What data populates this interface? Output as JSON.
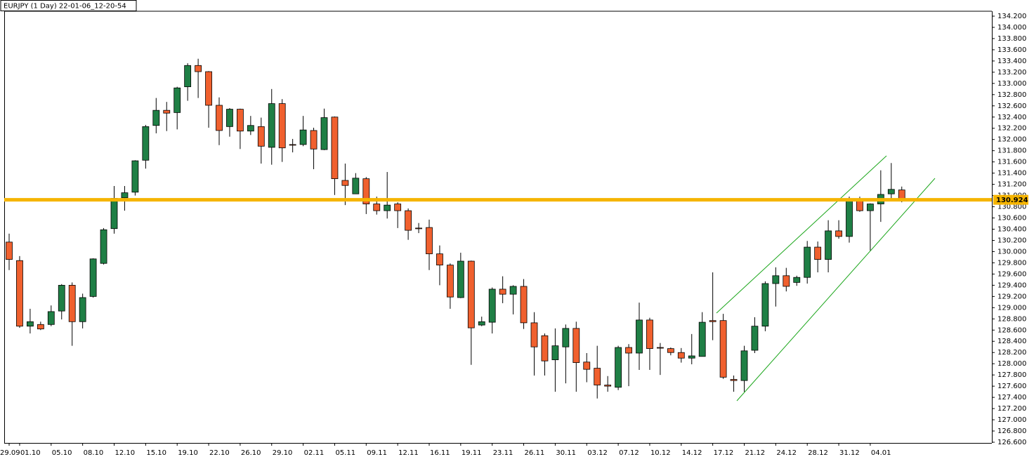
{
  "chart_data": {
    "type": "candlestick",
    "title": "EURJPY (1 Day) 22-01-06_12-20-54",
    "categories": [
      "29.09",
      "01.10",
      null,
      null,
      "05.10",
      null,
      null,
      "08.10",
      null,
      null,
      "12.10",
      null,
      null,
      "15.10",
      null,
      null,
      "19.10",
      null,
      null,
      "22.10",
      null,
      null,
      "26.10",
      null,
      null,
      "29.10",
      null,
      null,
      "02.11",
      null,
      null,
      "05.11",
      null,
      null,
      "09.11",
      null,
      null,
      "12.11",
      null,
      null,
      "16.11",
      null,
      null,
      "19.11",
      null,
      null,
      "23.11",
      null,
      null,
      "26.11",
      null,
      null,
      "30.11",
      null,
      null,
      "03.12",
      null,
      null,
      "07.12",
      null,
      null,
      "10.12",
      null,
      null,
      "14.12",
      null,
      null,
      "17.12",
      null,
      null,
      "21.12",
      null,
      null,
      "24.12",
      null,
      null,
      "28.12",
      null,
      null,
      "31.12",
      null,
      null,
      "04.01",
      null,
      null,
      null
    ],
    "open": [
      130.17,
      129.84,
      128.67,
      128.7,
      128.7,
      128.94,
      129.4,
      128.75,
      129.2,
      129.79,
      130.41,
      130.96,
      131.06,
      131.63,
      132.25,
      132.52,
      132.48,
      132.94,
      133.32,
      133.21,
      132.61,
      132.23,
      132.54,
      132.15,
      132.23,
      131.86,
      132.64,
      131.91,
      131.91,
      132.16,
      131.82,
      132.4,
      131.27,
      131.03,
      131.3,
      130.85,
      130.73,
      130.85,
      130.73,
      130.42,
      130.43,
      129.96,
      129.76,
      129.18,
      129.83,
      128.69,
      128.74,
      129.33,
      129.24,
      129.38,
      128.73,
      128.5,
      128.07,
      128.3,
      128.63,
      128.03,
      127.92,
      127.62,
      127.58,
      128.29,
      128.19,
      128.78,
      128.29,
      128.27,
      128.2,
      128.1,
      128.13,
      128.77,
      128.77,
      127.72,
      127.7,
      128.24,
      128.67,
      129.43,
      129.57,
      129.45,
      129.54,
      130.08,
      129.86,
      130.37,
      130.27,
      130.93,
      130.73,
      130.85,
      131.03,
      131.1
    ],
    "high": [
      130.32,
      129.92,
      128.98,
      128.75,
      129.04,
      129.42,
      129.45,
      129.25,
      129.88,
      130.42,
      131.17,
      131.17,
      131.63,
      132.26,
      132.74,
      132.67,
      132.94,
      133.36,
      133.44,
      133.22,
      132.75,
      132.56,
      132.55,
      132.42,
      132.39,
      132.9,
      132.72,
      132.01,
      132.42,
      132.21,
      132.55,
      132.41,
      131.57,
      131.4,
      131.33,
      130.98,
      131.42,
      130.88,
      130.77,
      130.51,
      130.57,
      130.11,
      129.79,
      129.98,
      129.84,
      128.84,
      129.36,
      129.56,
      129.4,
      129.51,
      128.92,
      128.54,
      128.63,
      128.7,
      128.75,
      128.19,
      128.32,
      127.78,
      128.32,
      128.35,
      129.09,
      128.82,
      128.37,
      128.29,
      128.28,
      128.53,
      128.92,
      129.63,
      128.89,
      127.79,
      128.32,
      128.83,
      129.47,
      129.72,
      129.71,
      129.57,
      130.19,
      130.18,
      130.56,
      130.56,
      130.98,
      130.98,
      130.86,
      131.45,
      131.58,
      131.16
    ],
    "low": [
      129.67,
      128.64,
      128.54,
      128.6,
      128.67,
      128.79,
      128.32,
      128.63,
      129.18,
      129.77,
      130.32,
      130.73,
      131.0,
      131.48,
      132.11,
      132.15,
      132.18,
      132.69,
      132.74,
      132.21,
      131.9,
      132.05,
      131.83,
      132.08,
      131.57,
      131.55,
      131.6,
      131.77,
      131.88,
      131.47,
      131.81,
      131.01,
      130.83,
      131.03,
      130.67,
      130.66,
      130.59,
      130.42,
      130.21,
      130.33,
      129.67,
      129.4,
      128.98,
      129.17,
      127.98,
      128.67,
      128.54,
      129.08,
      128.88,
      128.62,
      127.79,
      127.79,
      127.5,
      127.65,
      127.5,
      127.67,
      127.38,
      127.5,
      127.53,
      127.6,
      127.89,
      127.89,
      127.8,
      128.15,
      128.02,
      127.99,
      128.13,
      128.42,
      127.73,
      127.5,
      127.5,
      128.19,
      128.58,
      129.02,
      129.29,
      129.39,
      129.43,
      129.63,
      129.63,
      130.23,
      130.16,
      130.71,
      130.02,
      130.53,
      130.91,
      130.88
    ],
    "close": [
      129.86,
      128.67,
      128.75,
      128.62,
      128.93,
      129.4,
      128.75,
      129.18,
      129.87,
      130.39,
      130.95,
      131.05,
      131.62,
      132.23,
      132.52,
      132.47,
      132.92,
      133.32,
      133.21,
      132.61,
      132.16,
      132.54,
      132.15,
      132.25,
      131.88,
      132.64,
      131.85,
      131.9,
      132.17,
      131.83,
      132.39,
      131.3,
      131.18,
      131.31,
      130.85,
      130.73,
      130.83,
      130.73,
      130.38,
      130.41,
      129.96,
      129.76,
      129.19,
      129.83,
      128.64,
      128.75,
      129.33,
      129.24,
      129.38,
      128.73,
      128.3,
      128.05,
      128.32,
      128.63,
      128.02,
      127.9,
      127.62,
      127.6,
      128.29,
      128.19,
      128.78,
      128.27,
      128.28,
      128.2,
      128.1,
      128.14,
      128.74,
      128.75,
      127.76,
      127.7,
      128.23,
      128.67,
      129.43,
      129.57,
      129.38,
      129.54,
      130.08,
      129.86,
      130.37,
      130.27,
      130.9,
      130.73,
      130.85,
      131.02,
      131.11,
      130.92
    ],
    "up_color": "#1f7f45",
    "down_color": "#f0602e",
    "current_price": 130.924,
    "level_color": "#f5b400",
    "ylim": [
      126.6,
      134.2
    ],
    "yticks": [
      {
        "value": 126.6,
        "label": "126.600"
      },
      {
        "value": 126.8,
        "label": "126.800"
      },
      {
        "value": 127.0,
        "label": "127.000"
      },
      {
        "value": 127.2,
        "label": "127.200"
      },
      {
        "value": 127.4,
        "label": "127.400"
      },
      {
        "value": 127.6,
        "label": "127.600"
      },
      {
        "value": 127.8,
        "label": "127.800"
      },
      {
        "value": 128.0,
        "label": "128.000"
      },
      {
        "value": 128.2,
        "label": "128.200"
      },
      {
        "value": 128.4,
        "label": "128.400"
      },
      {
        "value": 128.6,
        "label": "128.600"
      },
      {
        "value": 128.8,
        "label": "128.800"
      },
      {
        "value": 129.0,
        "label": "129.000"
      },
      {
        "value": 129.2,
        "label": "129.200"
      },
      {
        "value": 129.4,
        "label": "129.400"
      },
      {
        "value": 129.6,
        "label": "129.600"
      },
      {
        "value": 129.8,
        "label": "129.800"
      },
      {
        "value": 130.0,
        "label": "130.000"
      },
      {
        "value": 130.2,
        "label": "130.200"
      },
      {
        "value": 130.4,
        "label": "130.400"
      },
      {
        "value": 130.6,
        "label": "130.600"
      },
      {
        "value": 130.8,
        "label": "130.800"
      },
      {
        "value": 131.0,
        "label": "131.000"
      },
      {
        "value": 131.2,
        "label": "131.200"
      },
      {
        "value": 131.4,
        "label": "131.400"
      },
      {
        "value": 131.6,
        "label": "131.600"
      },
      {
        "value": 131.8,
        "label": "131.800"
      },
      {
        "value": 132.0,
        "label": "132.000"
      },
      {
        "value": 132.2,
        "label": "132.200"
      },
      {
        "value": 132.4,
        "label": "132.400"
      },
      {
        "value": 132.6,
        "label": "132.600"
      },
      {
        "value": 132.8,
        "label": "132.800"
      },
      {
        "value": 133.0,
        "label": "133.000"
      },
      {
        "value": 133.2,
        "label": "133.200"
      },
      {
        "value": 133.4,
        "label": "133.400"
      },
      {
        "value": 133.6,
        "label": "133.600"
      },
      {
        "value": 133.8,
        "label": "133.800"
      },
      {
        "value": 134.0,
        "label": "134.000"
      },
      {
        "value": 134.2,
        "label": "134.200"
      }
    ]
  }
}
